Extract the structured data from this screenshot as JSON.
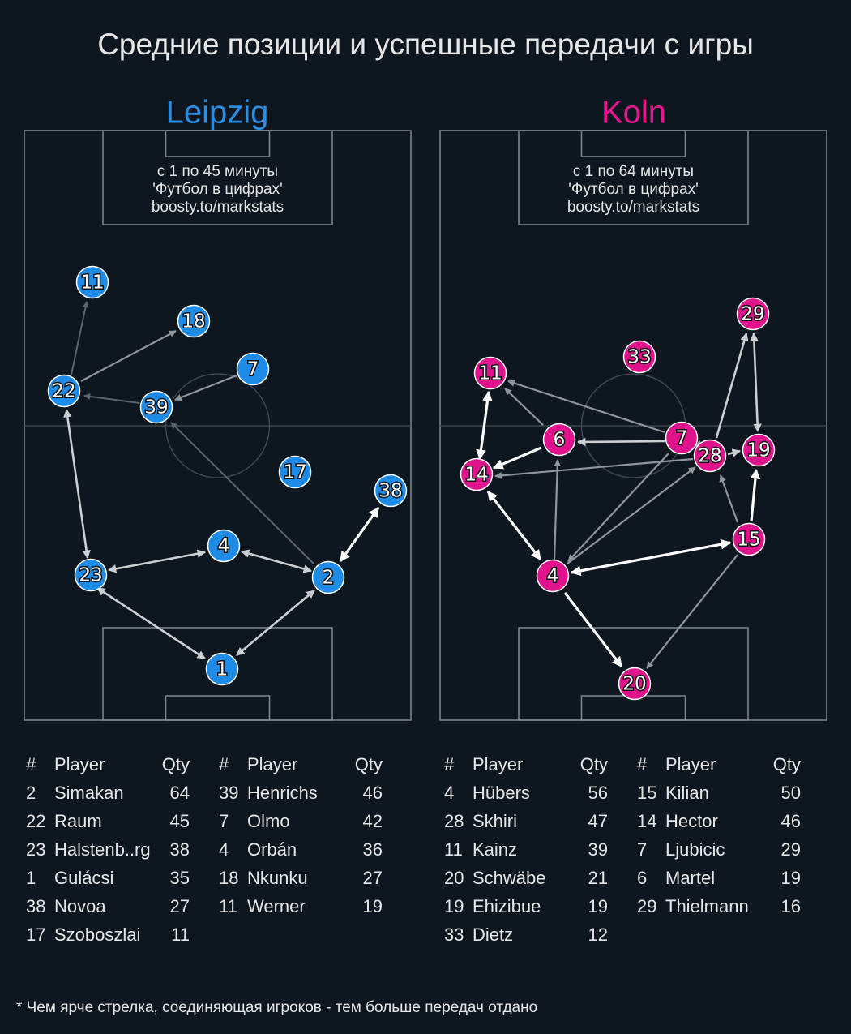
{
  "title": "Средние позиции и успешные передачи с игры",
  "columns": [
    "#",
    "Player",
    "Qty"
  ],
  "teams": [
    {
      "name": "Leipzig",
      "note": [
        "с 1 по 45 минуты",
        "'Футбол в цифрах'",
        "boosty.to/markstats"
      ],
      "nodes": [
        11,
        18,
        7,
        22,
        39,
        17,
        38,
        4,
        23,
        2,
        1
      ],
      "tables": [
        [
          [
            2,
            "Simakan",
            64
          ],
          [
            22,
            "Raum",
            45
          ],
          [
            23,
            "Halstenb..rg",
            38
          ],
          [
            1,
            "Gulácsi",
            35
          ],
          [
            38,
            "Novoa",
            27
          ],
          [
            17,
            "Szoboszlai",
            11
          ]
        ],
        [
          [
            39,
            "Henrichs",
            46
          ],
          [
            7,
            "Olmo",
            42
          ],
          [
            4,
            "Orbán",
            36
          ],
          [
            18,
            "Nkunku",
            27
          ],
          [
            11,
            "Werner",
            19
          ]
        ]
      ]
    },
    {
      "name": "Koln",
      "note": [
        "с 1 по 64 минуты",
        "'Футбол в цифрах'",
        "boosty.to/markstats"
      ],
      "nodes": [
        29,
        33,
        11,
        6,
        7,
        28,
        19,
        14,
        15,
        4,
        20
      ],
      "tables": [
        [
          [
            4,
            "Hübers",
            56
          ],
          [
            28,
            "Skhiri",
            47
          ],
          [
            11,
            "Kainz",
            39
          ],
          [
            20,
            "Schwäbe",
            21
          ],
          [
            19,
            "Ehizibue",
            19
          ],
          [
            33,
            "Dietz",
            12
          ]
        ],
        [
          [
            15,
            "Kilian",
            50
          ],
          [
            14,
            "Hector",
            46
          ],
          [
            7,
            "Ljubicic",
            29
          ],
          [
            6,
            "Martel",
            19
          ],
          [
            29,
            "Thielmann",
            16
          ]
        ]
      ]
    }
  ],
  "footnote": "* Чем ярче стрелка, соединяющая игроков - тем больше передач отдано"
}
